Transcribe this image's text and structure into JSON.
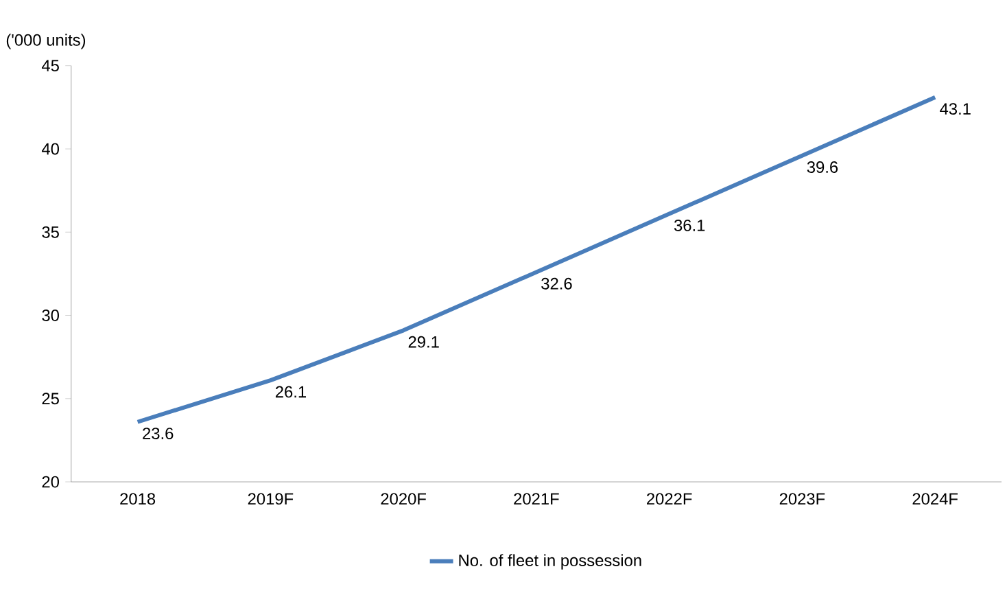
{
  "chart_data": {
    "type": "line",
    "ylabel": "('000 units)",
    "categories": [
      "2018",
      "2019F",
      "2020F",
      "2021F",
      "2022F",
      "2023F",
      "2024F"
    ],
    "series": [
      {
        "name": "No. of fleet in possession",
        "color": "#4a7ebb",
        "values": [
          23.6,
          26.1,
          29.1,
          32.6,
          36.1,
          39.6,
          43.1
        ]
      }
    ],
    "ylim": [
      20,
      45
    ],
    "yticks": [
      20,
      25,
      30,
      35,
      40,
      45
    ],
    "data_labels": true,
    "legend": "bottom",
    "grid": false,
    "marker": "none",
    "line_style": "solid"
  }
}
